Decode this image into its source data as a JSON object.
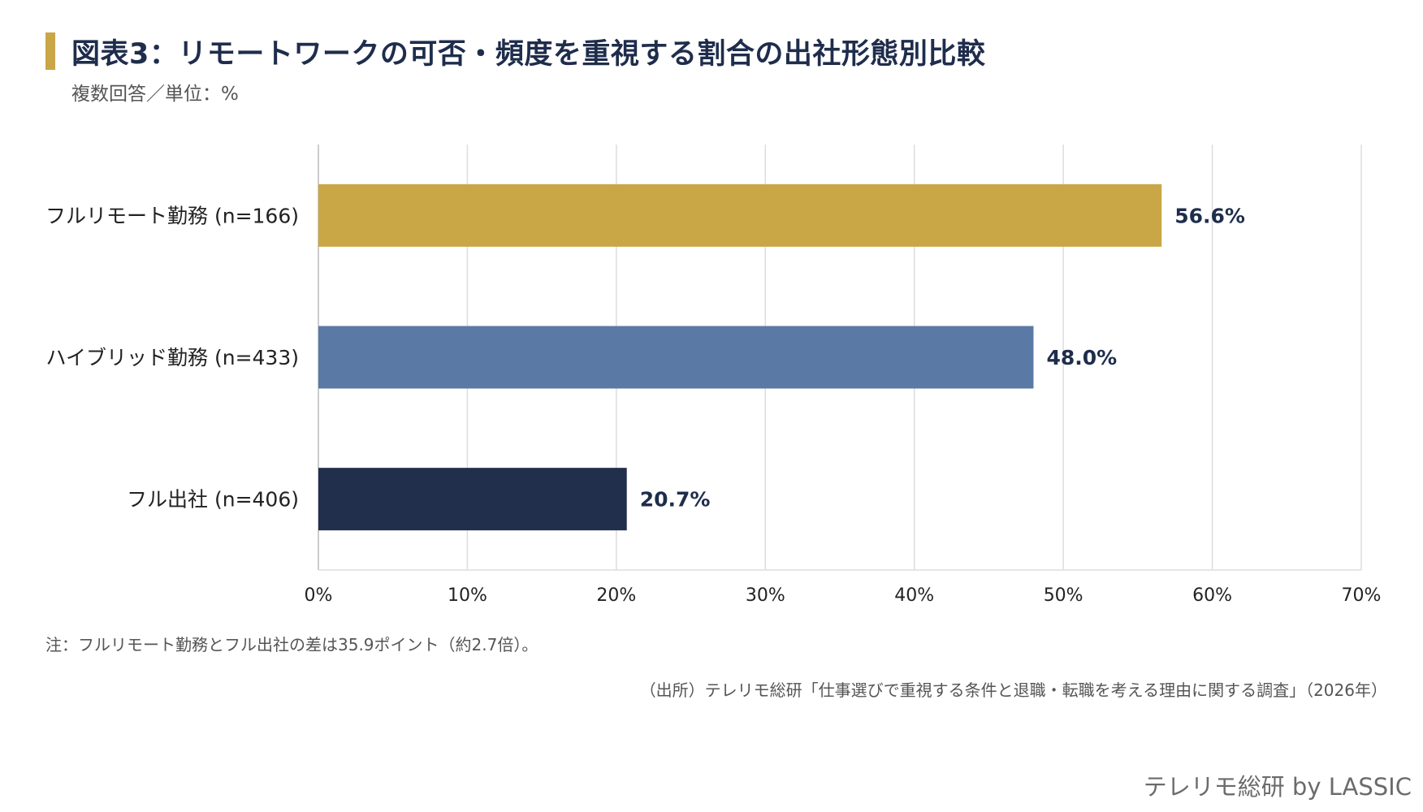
{
  "title": "図表3：リモートワークの可否・頻度を重視する割合の出社形態別比較",
  "subtitle": "複数回答／単位：%",
  "note": "注：フルリモート勤務とフル出社の差は35.9ポイント（約2.7倍）。",
  "source": "（出所）テレリモ総研「仕事選びで重視する条件と退職・転職を考える理由に関する調査」（2026年）",
  "brand": "テレリモ総研 by LASSIC",
  "colors": {
    "accent": "#C9A646",
    "navy": "#1F2D4C"
  },
  "chart_data": {
    "type": "bar",
    "orientation": "horizontal",
    "categories": [
      "フルリモート勤務 (n=166)",
      "ハイブリッド勤務 (n=433)",
      "フル出社 (n=406)"
    ],
    "values": [
      56.6,
      48.0,
      20.7
    ],
    "value_labels": [
      "56.6%",
      "48.0%",
      "20.7%"
    ],
    "colors": [
      "#C9A646",
      "#5A79A5",
      "#212E4C"
    ],
    "xlim": [
      0,
      70
    ],
    "xticks": [
      0,
      10,
      20,
      30,
      40,
      50,
      60,
      70
    ],
    "xtick_labels": [
      "0%",
      "10%",
      "20%",
      "30%",
      "40%",
      "50%",
      "60%",
      "70%"
    ],
    "grid": true
  }
}
